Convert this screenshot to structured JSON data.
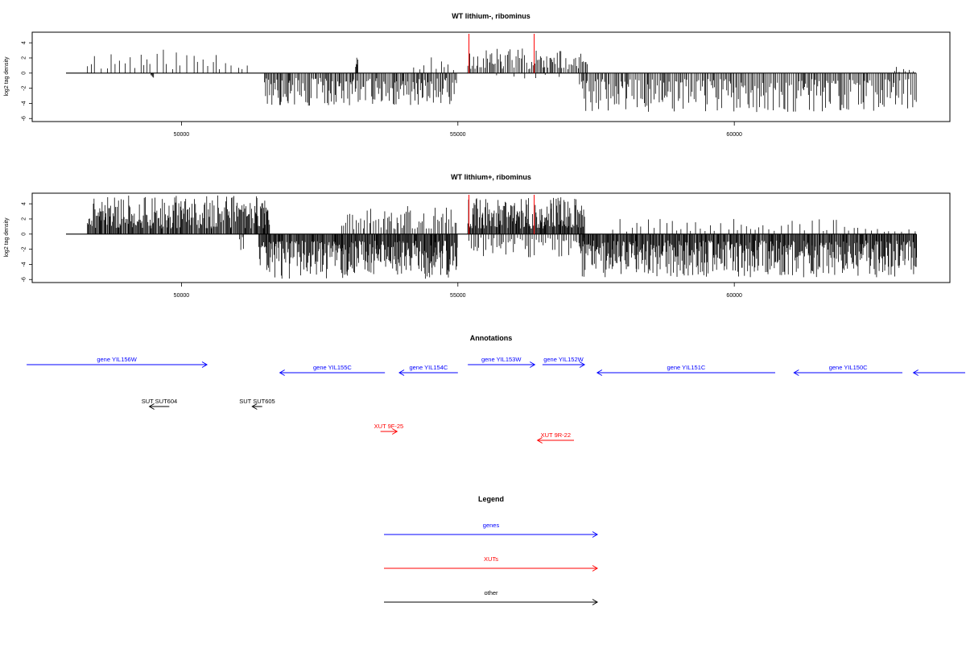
{
  "colors": {
    "genes": "#0000ff",
    "xuts": "#ff0000",
    "other": "#000000",
    "signal": "#000000",
    "marker": "#ff0000"
  },
  "chart_data": [
    {
      "type": "bar",
      "title": "WT lithium-, ribominus",
      "ylabel": "log2 tag density",
      "xlim": [
        47300,
        63900
      ],
      "ylim": [
        -6.4,
        5.4
      ],
      "xticks": [
        {
          "value": 50000,
          "label": "50000"
        },
        {
          "value": 55000,
          "label": "55000"
        },
        {
          "value": 60000,
          "label": "60000"
        }
      ],
      "yticks": [
        {
          "value": 4,
          "label": "4"
        },
        {
          "value": 2,
          "label": "2"
        },
        {
          "value": 0,
          "label": "0"
        },
        {
          "value": -2,
          "label": "-2"
        },
        {
          "value": -4,
          "label": "-4"
        },
        {
          "value": -6,
          "label": "-6"
        }
      ],
      "marker_positions": [
        55200,
        56380
      ],
      "grid": false,
      "series": [
        {
          "strand": "plus",
          "start": 48300,
          "end": 51250,
          "max": 3.2,
          "density": 0.13,
          "seed": 11
        },
        {
          "strand": "minus",
          "start": 49450,
          "end": 49500,
          "max": 1.0,
          "density": 1.0,
          "seed": 12
        },
        {
          "strand": "minus",
          "start": 51500,
          "end": 55000,
          "max": 4.3,
          "density": 0.55,
          "seed": 13
        },
        {
          "strand": "plus",
          "start": 53150,
          "end": 53200,
          "max": 2.9,
          "density": 1.0,
          "seed": 14
        },
        {
          "strand": "plus",
          "start": 54200,
          "end": 55000,
          "max": 2.6,
          "density": 0.12,
          "seed": 15
        },
        {
          "strand": "plus",
          "start": 55180,
          "end": 57350,
          "max": 3.4,
          "density": 0.45,
          "seed": 16
        },
        {
          "strand": "minus",
          "start": 55700,
          "end": 57000,
          "max": 1.0,
          "density": 0.05,
          "seed": 17
        },
        {
          "strand": "minus",
          "start": 57200,
          "end": 63300,
          "max": 5.2,
          "density": 0.48,
          "seed": 18
        },
        {
          "strand": "plus",
          "start": 62900,
          "end": 63300,
          "max": 1.0,
          "density": 0.2,
          "seed": 19
        }
      ]
    },
    {
      "type": "bar",
      "title": "WT lithium+, ribominus",
      "ylabel": "log2 tag density",
      "xlim": [
        47300,
        63900
      ],
      "ylim": [
        -6.4,
        5.4
      ],
      "xticks": [
        {
          "value": 50000,
          "label": "50000"
        },
        {
          "value": 55000,
          "label": "55000"
        },
        {
          "value": 60000,
          "label": "60000"
        }
      ],
      "yticks": [
        {
          "value": 4,
          "label": "4"
        },
        {
          "value": 2,
          "label": "2"
        },
        {
          "value": 0,
          "label": "0"
        },
        {
          "value": -2,
          "label": "-2"
        },
        {
          "value": -4,
          "label": "-4"
        },
        {
          "value": -6,
          "label": "-6"
        }
      ],
      "marker_positions": [
        55200,
        56380
      ],
      "grid": false,
      "series": [
        {
          "strand": "plus",
          "start": 48300,
          "end": 51600,
          "max": 5.1,
          "density": 0.8,
          "seed": 21
        },
        {
          "strand": "minus",
          "start": 51050,
          "end": 51150,
          "max": 2.4,
          "density": 0.4,
          "seed": 22
        },
        {
          "strand": "minus",
          "start": 51400,
          "end": 55000,
          "max": 5.9,
          "density": 0.95,
          "seed": 23
        },
        {
          "strand": "plus",
          "start": 52900,
          "end": 55000,
          "max": 3.8,
          "density": 0.35,
          "seed": 24
        },
        {
          "strand": "plus",
          "start": 55180,
          "end": 57300,
          "max": 4.9,
          "density": 0.95,
          "seed": 25
        },
        {
          "strand": "minus",
          "start": 55200,
          "end": 57300,
          "max": 3.1,
          "density": 0.3,
          "seed": 26
        },
        {
          "strand": "minus",
          "start": 57200,
          "end": 63300,
          "max": 5.7,
          "density": 0.9,
          "seed": 27
        },
        {
          "strand": "plus",
          "start": 57800,
          "end": 63300,
          "max": 2.0,
          "density": 0.12,
          "seed": 28
        }
      ]
    }
  ],
  "annotations": {
    "title": "Annotations",
    "items": [
      {
        "label": "gene YIL156W",
        "kind": "genes",
        "start": 47200,
        "end": 50460,
        "dir": "right",
        "row": 1
      },
      {
        "label": "gene YIL155C",
        "kind": "genes",
        "start": 51780,
        "end": 53680,
        "dir": "left",
        "row": 2
      },
      {
        "label": "gene YIL154C",
        "kind": "genes",
        "start": 53940,
        "end": 55000,
        "dir": "left",
        "row": 2
      },
      {
        "label": "gene YIL153W",
        "kind": "genes",
        "start": 55180,
        "end": 56390,
        "dir": "right",
        "row": 1
      },
      {
        "label": "gene YIL152W",
        "kind": "genes",
        "start": 56530,
        "end": 57290,
        "dir": "right",
        "row": 1
      },
      {
        "label": "gene YIL151C",
        "kind": "genes",
        "start": 57520,
        "end": 60740,
        "dir": "left",
        "row": 2
      },
      {
        "label": "gene YIL150C",
        "kind": "genes",
        "start": 61080,
        "end": 63040,
        "dir": "left",
        "row": 2
      },
      {
        "label": "",
        "kind": "genes",
        "start": 63240,
        "end": 64200,
        "dir": "left",
        "row": 2
      },
      {
        "label": "SUT SUT604",
        "kind": "other",
        "start": 49420,
        "end": 49780,
        "dir": "left",
        "row": 3
      },
      {
        "label": "SUT SUT605",
        "kind": "other",
        "start": 51280,
        "end": 51460,
        "dir": "left",
        "row": 3
      },
      {
        "label": "XUT 9F-25",
        "kind": "xuts",
        "start": 53600,
        "end": 53900,
        "dir": "right",
        "row": 4
      },
      {
        "label": "XUT 9R-22",
        "kind": "xuts",
        "start": 56440,
        "end": 57100,
        "dir": "left",
        "row": 5
      }
    ]
  },
  "legend": {
    "title": "Legend",
    "items": [
      {
        "label": "genes",
        "kind": "genes"
      },
      {
        "label": "XUTs",
        "kind": "xuts"
      },
      {
        "label": "other",
        "kind": "other"
      }
    ]
  }
}
